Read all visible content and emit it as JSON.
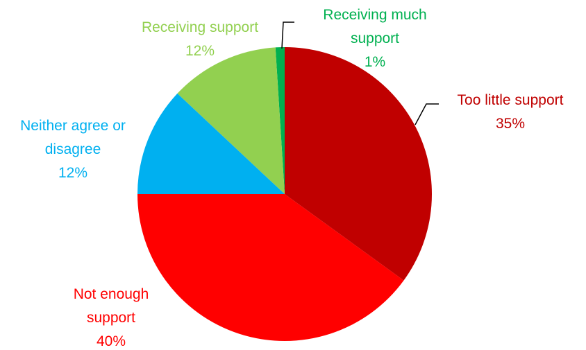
{
  "chart_data": {
    "type": "pie",
    "categories": [
      "Too little support",
      "Not enough support",
      "Neither agree or disagree",
      "Receiving support",
      "Receiving much support"
    ],
    "values": [
      35,
      40,
      12,
      12,
      1
    ],
    "value_labels": [
      "35%",
      "40%",
      "12%",
      "12%",
      "1%"
    ],
    "colors": [
      "#c00000",
      "#ff0000",
      "#00b0f0",
      "#92d050",
      "#00b050"
    ]
  }
}
